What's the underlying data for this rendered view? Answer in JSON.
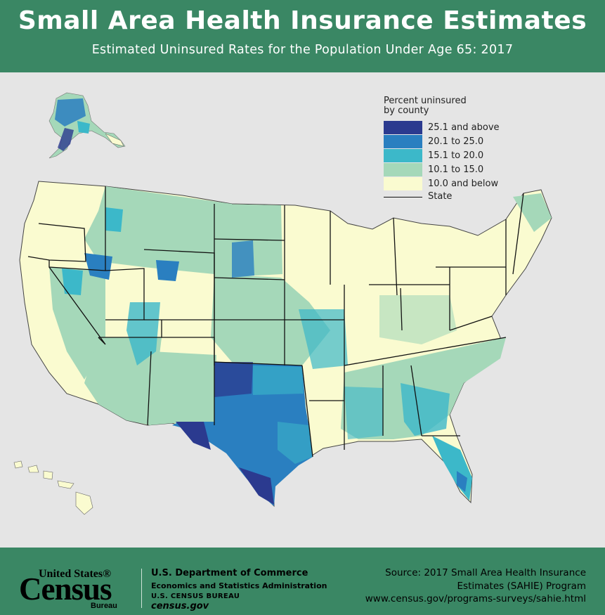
{
  "header": {
    "title": "Small Area Health Insurance Estimates",
    "subtitle": "Estimated Uninsured Rates for the Population Under Age 65: 2017"
  },
  "legend": {
    "title_line1": "Percent uninsured",
    "title_line2": "by county",
    "items": [
      {
        "label": "25.1 and above",
        "color": "#2b3a8f"
      },
      {
        "label": "20.1 to 25.0",
        "color": "#2a7fc0"
      },
      {
        "label": "15.1 to 20.0",
        "color": "#3cb8c9"
      },
      {
        "label": "10.1 to 15.0",
        "color": "#a5d8b9"
      },
      {
        "label": "10.0 and below",
        "color": "#fafbd0"
      }
    ],
    "state_label": "State"
  },
  "colors": {
    "brand_green": "#3a8764",
    "background": "#e5e5e5"
  },
  "footer": {
    "logo_us": "United States®",
    "logo_census": "Census",
    "logo_bureau": "Bureau",
    "dept_line1": "U.S. Department of Commerce",
    "dept_line2": "Economics and Statistics Administration",
    "dept_line3": "U.S. CENSUS BUREAU",
    "dept_line4": "census.gov",
    "source_line1": "Source: 2017 Small Area Health Insurance",
    "source_line2": "Estimates (SAHIE) Program",
    "source_line3": "www.census.gov/programs-surveys/sahie.html"
  }
}
